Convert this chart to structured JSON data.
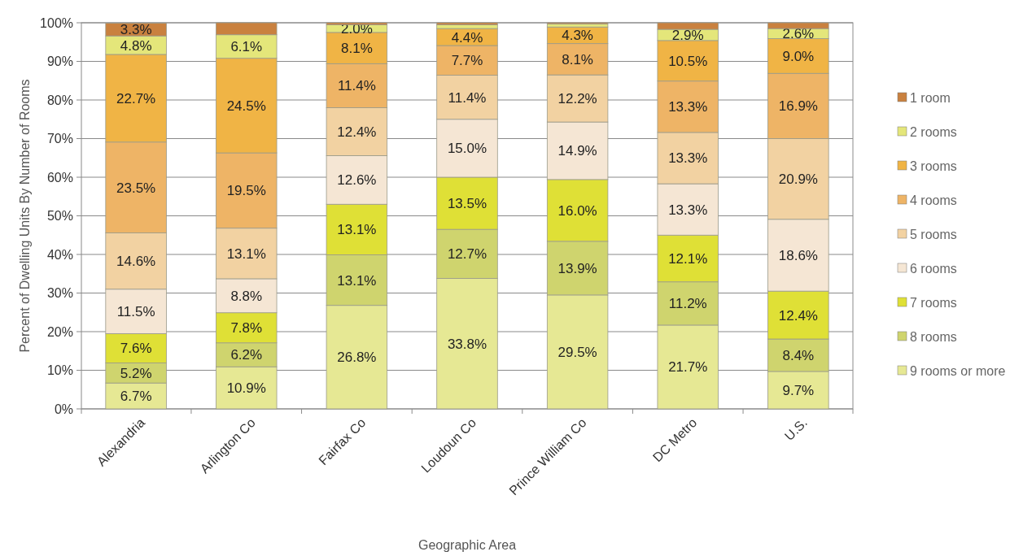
{
  "chart_data": {
    "type": "bar",
    "stacked": true,
    "categories": [
      "Alexandria",
      "Arlington Co",
      "Fairfax Co",
      "Loudoun Co",
      "Prince William Co",
      "DC Metro",
      "U.S."
    ],
    "xlabel": "Geographic Area",
    "ylabel": "Percent of Dwelling Units By Number of Rooms",
    "ylim": [
      0,
      100
    ],
    "yticks": [
      {
        "value": 0,
        "label": "0%"
      },
      {
        "value": 10,
        "label": "10%"
      },
      {
        "value": 20,
        "label": "20%"
      },
      {
        "value": 30,
        "label": "30%"
      },
      {
        "value": 40,
        "label": "40%"
      },
      {
        "value": 50,
        "label": "50%"
      },
      {
        "value": 60,
        "label": "60%"
      },
      {
        "value": 70,
        "label": "70%"
      },
      {
        "value": 80,
        "label": "80%"
      },
      {
        "value": 90,
        "label": "90%"
      },
      {
        "value": 100,
        "label": "100%"
      }
    ],
    "grid": "y",
    "legend": "right",
    "series": [
      {
        "name": "9 rooms or more",
        "color": "#e6e894",
        "values": [
          6.7,
          10.9,
          26.8,
          33.8,
          29.5,
          21.7,
          9.7
        ],
        "value_labels": [
          "6.7%",
          "10.9%",
          "26.8%",
          "33.8%",
          "29.5%",
          "21.7%",
          "9.7%"
        ]
      },
      {
        "name": "8 rooms",
        "color": "#cfd46e",
        "values": [
          5.2,
          6.2,
          13.1,
          12.7,
          13.9,
          11.2,
          8.4
        ],
        "value_labels": [
          "5.2%",
          "6.2%",
          "13.1%",
          "12.7%",
          "13.9%",
          "11.2%",
          "8.4%"
        ]
      },
      {
        "name": "7 rooms",
        "color": "#dfe036",
        "values": [
          7.6,
          7.8,
          13.1,
          13.5,
          16.0,
          12.1,
          12.4
        ],
        "value_labels": [
          "7.6%",
          "7.8%",
          "13.1%",
          "13.5%",
          "16.0%",
          "12.1%",
          "12.4%"
        ]
      },
      {
        "name": "6 rooms",
        "color": "#f5e6d4",
        "values": [
          11.5,
          8.8,
          12.6,
          15.0,
          14.9,
          13.3,
          18.6
        ],
        "value_labels": [
          "11.5%",
          "8.8%",
          "12.6%",
          "15.0%",
          "14.9%",
          "13.3%",
          "18.6%"
        ]
      },
      {
        "name": "5 rooms",
        "color": "#f2d2a2",
        "values": [
          14.6,
          13.1,
          12.4,
          11.4,
          12.2,
          13.3,
          20.9
        ],
        "value_labels": [
          "14.6%",
          "13.1%",
          "12.4%",
          "11.4%",
          "12.2%",
          "13.3%",
          "20.9%"
        ]
      },
      {
        "name": "4 rooms",
        "color": "#eeb466",
        "values": [
          23.5,
          19.5,
          11.4,
          7.7,
          8.1,
          13.3,
          16.9
        ],
        "value_labels": [
          "23.5%",
          "19.5%",
          "11.4%",
          "7.7%",
          "8.1%",
          "13.3%",
          "16.9%"
        ]
      },
      {
        "name": "3 rooms",
        "color": "#f0b445",
        "values": [
          22.7,
          24.5,
          8.1,
          4.4,
          4.3,
          10.5,
          9.0
        ],
        "value_labels": [
          "22.7%",
          "24.5%",
          "8.1%",
          "4.4%",
          "4.3%",
          "10.5%",
          "9.0%"
        ]
      },
      {
        "name": "2 rooms",
        "color": "#e4e67a",
        "values": [
          4.8,
          6.1,
          2.0,
          1.0,
          0.8,
          2.9,
          2.6
        ],
        "value_labels": [
          "4.8%",
          "6.1%",
          "2.0%",
          null,
          null,
          "2.9%",
          "2.6%"
        ]
      },
      {
        "name": "1 room",
        "color": "#c9813f",
        "values": [
          3.3,
          3.1,
          0.5,
          0.5,
          0.3,
          1.7,
          1.5
        ],
        "value_labels": [
          "3.3%",
          null,
          null,
          null,
          null,
          null,
          null
        ]
      }
    ]
  }
}
